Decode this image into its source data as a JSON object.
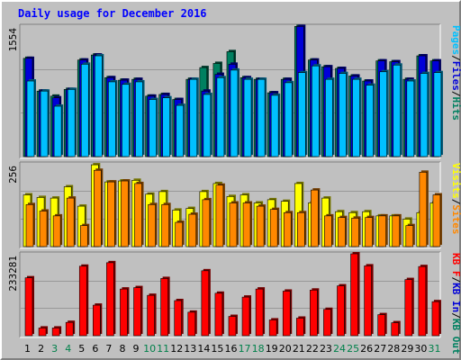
{
  "title": "Daily usage for December 2016",
  "colors": {
    "pages": "#00c0ff",
    "files": "#0000d8",
    "hits": "#008060",
    "visits": "#ffff00",
    "sites": "#ff8800",
    "kb_f": "#ff0000",
    "kb_in": "#0000d8",
    "kb_out": "#008060",
    "title": "#0000ff",
    "weekend_day": "#00804a",
    "day": "#000000",
    "plot_bg": "#c0c0c0"
  },
  "legends": {
    "top": [
      {
        "text": "Pages",
        "color": "#00c0ff"
      },
      {
        "text": "/",
        "color": "#000000"
      },
      {
        "text": "Files",
        "color": "#0000d8"
      },
      {
        "text": "/",
        "color": "#000000"
      },
      {
        "text": "Hits",
        "color": "#008060"
      }
    ],
    "mid": [
      {
        "text": "Visits",
        "color": "#ffff00"
      },
      {
        "text": "/",
        "color": "#000000"
      },
      {
        "text": "Sites",
        "color": "#ff8800"
      }
    ],
    "bottom": [
      {
        "text": "KB F",
        "color": "#ff0000"
      },
      {
        "text": "/",
        "color": "#000000"
      },
      {
        "text": "KB In",
        "color": "#0000d8"
      },
      {
        "text": "/",
        "color": "#000000"
      },
      {
        "text": "KB Out",
        "color": "#008060"
      }
    ]
  },
  "chart_data": {
    "type": "bar",
    "title": "Daily usage for December 2016",
    "categories": [
      "1",
      "2",
      "3",
      "4",
      "5",
      "6",
      "7",
      "8",
      "9",
      "10",
      "11",
      "12",
      "13",
      "14",
      "15",
      "16",
      "17",
      "18",
      "19",
      "20",
      "21",
      "22",
      "23",
      "24",
      "25",
      "26",
      "27",
      "28",
      "29",
      "30",
      "31"
    ],
    "weekend_days": [
      "3",
      "4",
      "10",
      "11",
      "17",
      "18",
      "24",
      "25",
      "31"
    ],
    "panels": [
      {
        "name": "top",
        "ylabel_max": "1554",
        "ylim": [
          0,
          1554
        ],
        "series": [
          {
            "name": "Hits",
            "values": [
              1170,
              780,
              720,
              800,
              1150,
              1210,
              940,
              910,
              920,
              720,
              740,
              680,
              920,
              1060,
              1110,
              1250,
              940,
              920,
              760,
              920,
              1550,
              1150,
              1070,
              1050,
              960,
              900,
              1140,
              1130,
              920,
              1200,
              1140
            ]
          },
          {
            "name": "Files",
            "values": [
              1170,
              780,
              700,
              800,
              1150,
              1210,
              940,
              910,
              920,
              720,
              740,
              680,
              920,
              780,
              980,
              1100,
              940,
              920,
              760,
              920,
              1550,
              1150,
              1070,
              1050,
              960,
              900,
              1140,
              1130,
              920,
              1200,
              1140
            ]
          },
          {
            "name": "Pages",
            "values": [
              900,
              780,
              600,
              800,
              1100,
              1200,
              890,
              860,
              890,
              680,
              700,
              610,
              920,
              740,
              940,
              1030,
              920,
              920,
              730,
              880,
              1000,
              1080,
              920,
              990,
              920,
              850,
              1010,
              1090,
              900,
              990,
              1000
            ]
          }
        ]
      },
      {
        "name": "mid",
        "ylabel_max": "256",
        "ylim": [
          0,
          256
        ],
        "series": [
          {
            "name": "Visits",
            "values": [
              160,
              152,
              150,
              185,
              125,
              253,
              200,
              203,
              205,
              162,
              170,
              113,
              118,
              170,
              195,
              155,
              160,
              135,
              145,
              140,
              195,
              135,
              150,
              108,
              105,
              108,
              95,
              95,
              85,
              105,
              135
            ]
          },
          {
            "name": "Sites",
            "values": [
              130,
              110,
              95,
              150,
              65,
              236,
              200,
              203,
              195,
              130,
              130,
              75,
              100,
              145,
              190,
              135,
              135,
              125,
              115,
              105,
              105,
              175,
              95,
              90,
              88,
              90,
              95,
              95,
              65,
              230,
              160
            ]
          }
        ]
      },
      {
        "name": "bottom",
        "ylabel_max": "233281",
        "ylim": [
          0,
          233281
        ],
        "series": [
          {
            "name": "KB F",
            "values": [
              165000,
              22000,
              22000,
              38000,
              198000,
              87000,
              208000,
              133000,
              137000,
              115000,
              163000,
              100000,
              67000,
              185000,
              121000,
              55000,
              110000,
              133000,
              45000,
              127000,
              50000,
              130000,
              75000,
              142000,
              233281,
              199000,
              60000,
              37000,
              160000,
              197000,
              97000
            ]
          }
        ]
      }
    ]
  }
}
